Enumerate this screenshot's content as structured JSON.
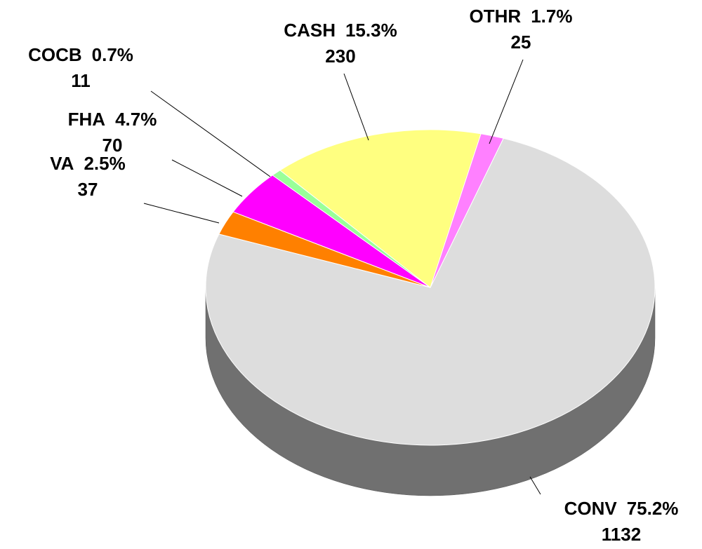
{
  "chart_data": {
    "type": "pie",
    "categories": [
      "CONV",
      "VA",
      "FHA",
      "COCB",
      "CASH",
      "OTHR"
    ],
    "values": [
      1132,
      37,
      70,
      11,
      230,
      25
    ],
    "percent_labels": [
      "75.2%",
      "2.5%",
      "4.7%",
      "0.7%",
      "15.3%",
      "1.7%"
    ],
    "colors": [
      "#dddddd",
      "#ff8000",
      "#ff00ff",
      "#99ff99",
      "#ffff80",
      "#ff80ff"
    ],
    "side_colors": [
      "#707070",
      "#8b4500",
      "#990099",
      "#4c994c",
      "#999940",
      "#993399"
    ]
  }
}
